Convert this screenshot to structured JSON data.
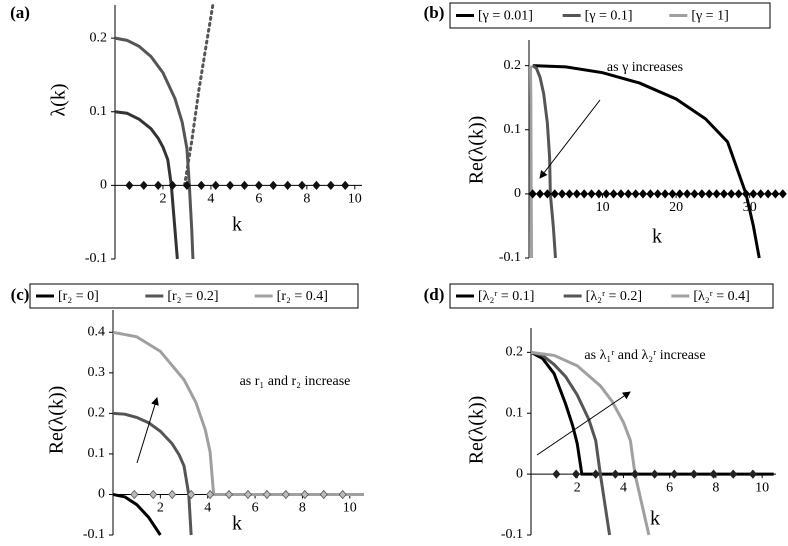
{
  "chart_data": [
    {
      "type": "line",
      "title": "(a)",
      "xlabel": "k",
      "ylabel": "λ(k)",
      "xlim": [
        0,
        10.3
      ],
      "ylim": [
        -0.1,
        0.245
      ],
      "xticks": [
        2,
        4,
        6,
        8,
        10
      ],
      "yticks": [
        -0.1,
        0,
        0.1,
        0.2
      ],
      "series": [
        {
          "color": "#333333",
          "x": [
            0,
            0.5,
            1,
            1.5,
            1.8,
            2.0,
            2.2,
            2.35,
            2.5,
            2.6
          ],
          "values": [
            0.1,
            0.098,
            0.09,
            0.077,
            0.064,
            0.052,
            0.035,
            0,
            -0.06,
            -0.1
          ]
        },
        {
          "color": "#555555",
          "x": [
            0,
            0.5,
            1,
            1.5,
            2,
            2.5,
            2.8,
            3.0,
            3.1,
            3.2,
            3.25
          ],
          "values": [
            0.2,
            0.197,
            0.189,
            0.175,
            0.153,
            0.118,
            0.086,
            0.05,
            0,
            -0.06,
            -0.1
          ]
        },
        {
          "color": "#555555",
          "dash": "dotted",
          "x": [
            2.9,
            3.2,
            3.5,
            3.8,
            4.08
          ],
          "values": [
            0,
            0.06,
            0.13,
            0.19,
            0.245
          ]
        },
        {
          "color": "#111111",
          "marker": "diamond",
          "x": [
            0.6,
            1.2,
            1.8,
            2.4,
            3.0,
            3.6,
            4.2,
            4.8,
            5.4,
            6.0,
            6.6,
            7.2,
            7.8,
            8.4,
            9.0,
            9.6
          ],
          "values": [
            0,
            0,
            0,
            0,
            0,
            0,
            0,
            0,
            0,
            0,
            0,
            0,
            0,
            0,
            0,
            0
          ]
        }
      ]
    },
    {
      "type": "line",
      "title": "(b)",
      "xlabel": "k",
      "ylabel": "Re(λ(k))",
      "annotation": "as γ increases",
      "xlim": [
        0,
        34.8
      ],
      "ylim": [
        -0.1,
        0.24
      ],
      "xticks": [
        10,
        20,
        30
      ],
      "yticks": [
        -0.1,
        0,
        0.1,
        0.2
      ],
      "series": [
        {
          "name": "[γ = 0.01]",
          "color": "#000000",
          "x": [
            0.5,
            5,
            10,
            15,
            20,
            24,
            27,
            29.5,
            30.5,
            31.3
          ],
          "values": [
            0.2,
            0.198,
            0.189,
            0.173,
            0.148,
            0.117,
            0.081,
            0,
            -0.05,
            -0.1
          ]
        },
        {
          "name": "[γ = 0.1]",
          "color": "#555555",
          "x": [
            0.5,
            1,
            1.5,
            2,
            2.5,
            2.8,
            2.9,
            3.3,
            3.6
          ],
          "values": [
            0.2,
            0.196,
            0.182,
            0.156,
            0.11,
            0.057,
            0,
            -0.05,
            -0.1
          ]
        },
        {
          "name": "[γ = 1]",
          "color": "#a0a0a0",
          "x": [
            0.2,
            0.25,
            0.3,
            0.32,
            0.35
          ],
          "values": [
            0.2,
            0.15,
            0,
            -0.05,
            -0.1
          ]
        },
        {
          "color": "#000000",
          "marker": "diamond",
          "x": [
            0.5,
            1.5,
            2.5,
            3.5,
            4.5,
            5.5,
            6.5,
            7.5,
            8.5,
            9.5,
            10.5,
            11.5,
            12.5,
            13.5,
            14.5,
            15.5,
            16.5,
            17.5,
            18.5,
            19.5,
            20.5,
            21.5,
            22.5,
            23.5,
            24.5,
            25.5,
            26.5,
            27.5,
            28.5,
            29.5,
            30.5,
            31.5,
            32.5,
            33.5,
            34.5
          ],
          "values": [
            0,
            0,
            0,
            0,
            0,
            0,
            0,
            0,
            0,
            0,
            0,
            0,
            0,
            0,
            0,
            0,
            0,
            0,
            0,
            0,
            0,
            0,
            0,
            0,
            0,
            0,
            0,
            0,
            0,
            0,
            0,
            0,
            0,
            0,
            0
          ]
        }
      ]
    },
    {
      "type": "line",
      "title": "(c)",
      "xlabel": "k",
      "ylabel": "Re(λ(k))",
      "annotation": "as r₁ and r₂ increase",
      "xlim": [
        0,
        10.6
      ],
      "ylim": [
        -0.1,
        0.455
      ],
      "xticks": [
        2,
        4,
        6,
        8,
        10
      ],
      "yticks": [
        -0.1,
        0,
        0.1,
        0.2,
        0.3,
        0.4
      ],
      "series": [
        {
          "name": "[r₂ = 0]",
          "color": "#000000",
          "x": [
            0,
            0.5,
            1,
            1.5,
            2
          ],
          "values": [
            0,
            -0.006,
            -0.025,
            -0.056,
            -0.1
          ]
        },
        {
          "name": "[r₂ = 0.2]",
          "color": "#555555",
          "x": [
            0,
            0.5,
            1,
            1.5,
            2,
            2.5,
            2.8,
            3.0,
            3.2,
            3.3
          ],
          "values": [
            0.2,
            0.198,
            0.19,
            0.177,
            0.156,
            0.125,
            0.097,
            0.07,
            0,
            -0.1
          ]
        },
        {
          "name": "[r₂ = 0.4]",
          "color": "#a0a0a0",
          "x": [
            0,
            1,
            2,
            3,
            3.5,
            3.9,
            4.1,
            4.25,
            10.6
          ],
          "values": [
            0.4,
            0.389,
            0.353,
            0.283,
            0.227,
            0.159,
            0.105,
            0,
            0
          ]
        },
        {
          "color": "#555555",
          "fill": "#bbbbbb",
          "marker": "diamond",
          "x": [
            0.9,
            1.7,
            2.5,
            3.3,
            4.1,
            4.9,
            5.7,
            6.5,
            7.3,
            8.1,
            8.9,
            9.7
          ],
          "values": [
            0,
            0,
            0,
            0,
            0,
            0,
            0,
            0,
            0,
            0,
            0,
            0
          ]
        }
      ]
    },
    {
      "type": "line",
      "title": "(d)",
      "xlabel": "k",
      "ylabel": "Re(λ(k))",
      "annotation": "as λ₁ʳ and λ₂ʳ increase",
      "xlim": [
        0,
        10.6
      ],
      "ylim": [
        -0.1,
        0.24
      ],
      "xticks": [
        2,
        4,
        6,
        8,
        10
      ],
      "yticks": [
        -0.1,
        0,
        0.1,
        0.2
      ],
      "series": [
        {
          "name": "[λ₂ʳ = 0.1]",
          "color": "#000000",
          "x": [
            0,
            0.5,
            1,
            1.5,
            1.8,
            2.0,
            2.2,
            10.5
          ],
          "values": [
            0.2,
            0.19,
            0.165,
            0.115,
            0.08,
            0.05,
            0,
            0
          ]
        },
        {
          "name": "[λ₂ʳ = 0.2]",
          "color": "#555555",
          "x": [
            0,
            0.5,
            1,
            1.5,
            2,
            2.5,
            2.8,
            3.0,
            3.2,
            3.4
          ],
          "values": [
            0.2,
            0.195,
            0.18,
            0.16,
            0.13,
            0.09,
            0.055,
            0,
            -0.05,
            -0.1
          ]
        },
        {
          "name": "[λ₂ʳ = 0.4]",
          "color": "#a0a0a0",
          "x": [
            0,
            1,
            2,
            3,
            3.5,
            4,
            4.3,
            4.5,
            4.8,
            5.1
          ],
          "values": [
            0.2,
            0.195,
            0.178,
            0.145,
            0.12,
            0.085,
            0.055,
            0,
            -0.05,
            -0.1
          ]
        },
        {
          "color": "#222222",
          "marker": "diamond",
          "x": [
            1.1,
            1.95,
            2.8,
            3.65,
            4.5,
            5.35,
            6.2,
            7.05,
            7.9,
            8.75,
            9.6
          ],
          "values": [
            0,
            0,
            0,
            0,
            0,
            0,
            0,
            0,
            0,
            0,
            0
          ]
        }
      ]
    }
  ]
}
